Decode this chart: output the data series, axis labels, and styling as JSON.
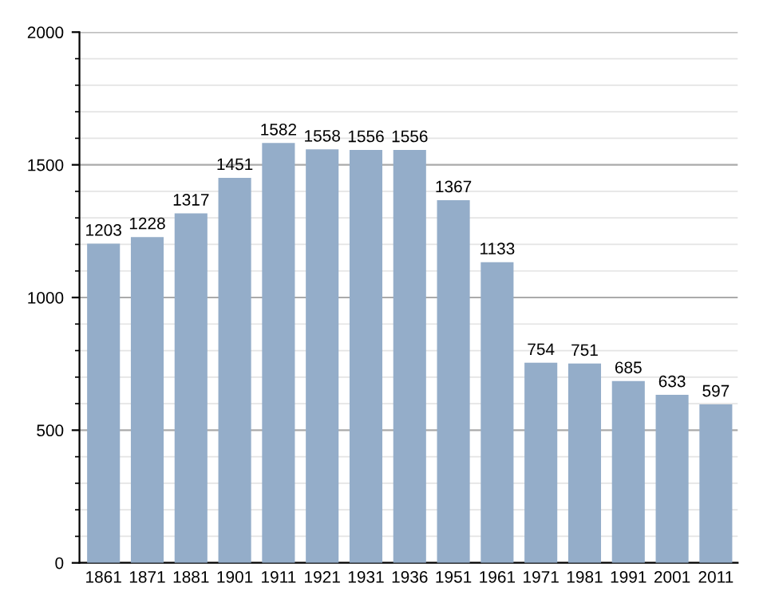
{
  "chart_data": {
    "type": "bar",
    "categories": [
      "1861",
      "1871",
      "1881",
      "1901",
      "1911",
      "1921",
      "1931",
      "1936",
      "1951",
      "1961",
      "1971",
      "1981",
      "1991",
      "2001",
      "2011"
    ],
    "values": [
      1203,
      1228,
      1317,
      1451,
      1582,
      1558,
      1556,
      1556,
      1367,
      1133,
      754,
      751,
      685,
      633,
      597
    ],
    "color": "#94adc9",
    "ylim": [
      0,
      2000
    ],
    "yticks": [
      0,
      500,
      1000,
      1500,
      2000
    ],
    "grid": true,
    "data_labels": true
  }
}
